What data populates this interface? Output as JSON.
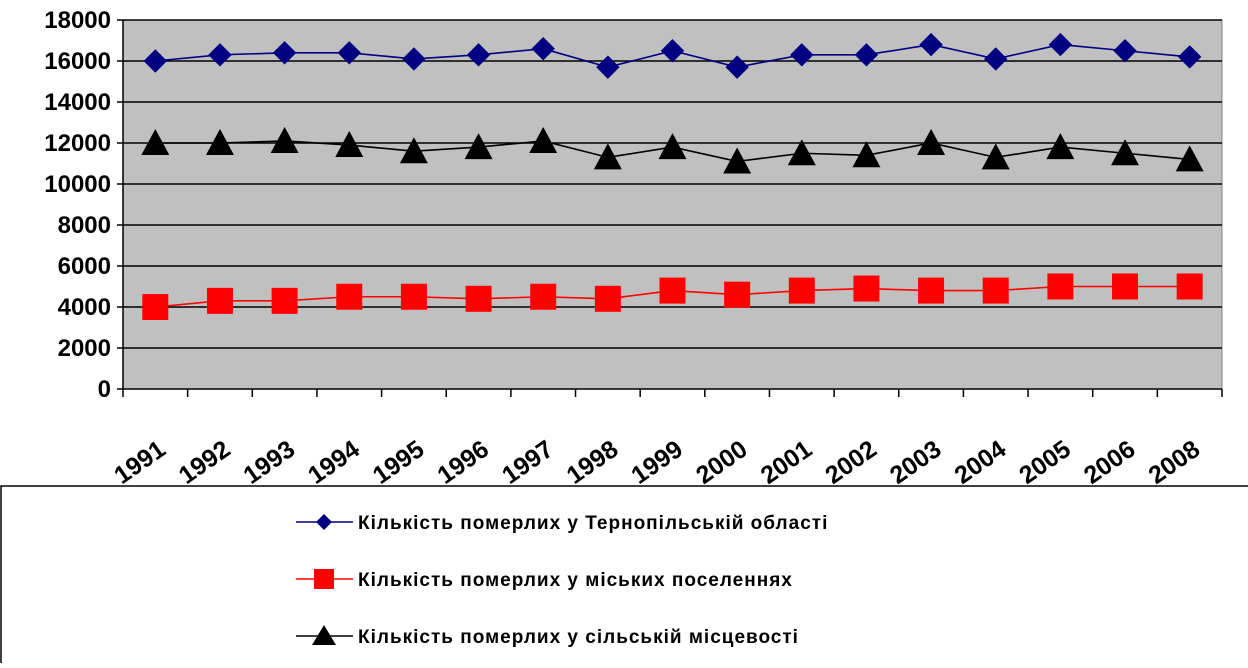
{
  "chart_data": {
    "type": "line",
    "title": "",
    "xlabel": "",
    "ylabel": "",
    "categories": [
      "1991",
      "1992",
      "1993",
      "1994",
      "1995",
      "1996",
      "1997",
      "1998",
      "1999",
      "2000",
      "2001",
      "2002",
      "2003",
      "2004",
      "2005",
      "2006",
      "2008"
    ],
    "ylim": [
      0,
      18000
    ],
    "yticks": [
      0,
      2000,
      4000,
      6000,
      8000,
      10000,
      12000,
      14000,
      16000,
      18000
    ],
    "grid": true,
    "plot_background": "#c0c0c0",
    "legend_position": "bottom",
    "series": [
      {
        "name": "Кількість померлих у Тернопільській області",
        "color": "#000080",
        "marker": "diamond",
        "values": [
          16000,
          16300,
          16400,
          16400,
          16100,
          16300,
          16600,
          15700,
          16500,
          15700,
          16300,
          16300,
          16800,
          16100,
          16800,
          16500,
          16200
        ]
      },
      {
        "name": "Кількість померлих у міських поселеннях",
        "color": "#ff0000",
        "marker": "square",
        "values": [
          4000,
          4300,
          4300,
          4500,
          4500,
          4400,
          4500,
          4400,
          4800,
          4600,
          4800,
          4900,
          4800,
          4800,
          5000,
          5000,
          5000
        ]
      },
      {
        "name": "Кількість померлих у сільській місцевості",
        "color": "#000000",
        "marker": "triangle",
        "values": [
          12000,
          12000,
          12100,
          11900,
          11600,
          11800,
          12100,
          11300,
          11800,
          11100,
          11500,
          11400,
          12000,
          11300,
          11800,
          11500,
          11200
        ]
      }
    ]
  }
}
